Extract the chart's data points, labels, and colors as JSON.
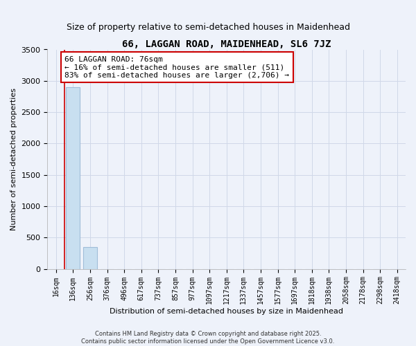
{
  "title": "66, LAGGAN ROAD, MAIDENHEAD, SL6 7JZ",
  "subtitle": "Size of property relative to semi-detached houses in Maidenhead",
  "xlabel": "Distribution of semi-detached houses by size in Maidenhead",
  "ylabel": "Number of semi-detached properties",
  "footnote": "Contains HM Land Registry data © Crown copyright and database right 2025.\nContains public sector information licensed under the Open Government Licence v3.0.",
  "bins": [
    "16sqm",
    "136sqm",
    "256sqm",
    "376sqm",
    "496sqm",
    "617sqm",
    "737sqm",
    "857sqm",
    "977sqm",
    "1097sqm",
    "1217sqm",
    "1337sqm",
    "1457sqm",
    "1577sqm",
    "1697sqm",
    "1818sqm",
    "1938sqm",
    "2058sqm",
    "2178sqm",
    "2298sqm",
    "2418sqm"
  ],
  "values": [
    0,
    2900,
    350,
    0,
    0,
    0,
    0,
    0,
    0,
    0,
    0,
    0,
    0,
    0,
    0,
    0,
    0,
    0,
    0,
    0,
    0
  ],
  "bar_color": "#c8dff0",
  "bar_edge_color": "#a0bcd8",
  "property_size": 76,
  "pct_smaller": 16,
  "count_smaller": 511,
  "pct_larger": 83,
  "count_larger": 2706,
  "vline_color": "#cc0000",
  "annotation_box_edgecolor": "#cc0000",
  "ylim": [
    0,
    3500
  ],
  "grid_color": "#d0d8e8",
  "background_color": "#eef2fa",
  "title_fontsize": 10,
  "subtitle_fontsize": 9,
  "annotation_fontsize": 8,
  "ylabel_fontsize": 8,
  "xlabel_fontsize": 8,
  "tick_fontsize": 7,
  "footnote_fontsize": 6
}
